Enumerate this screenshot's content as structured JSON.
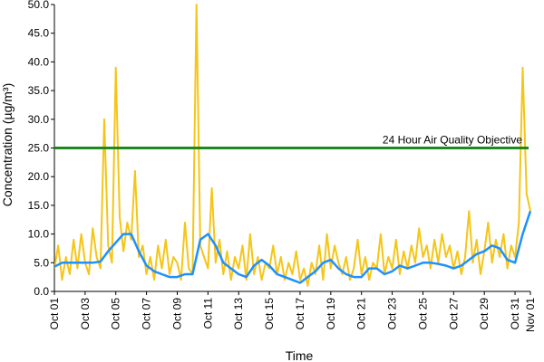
{
  "chart_data": {
    "type": "line",
    "title": "",
    "xlabel": "Time",
    "ylabel": "Concentration (µg/m³)",
    "xlim": [
      "2018-10-01",
      "2018-11-01"
    ],
    "ylim": [
      0,
      50
    ],
    "yticks": [
      0,
      5,
      10,
      15,
      20,
      25,
      30,
      35,
      40,
      45,
      50
    ],
    "ytick_labels": [
      "0.0",
      "5.0",
      "10.0",
      "15.0",
      "20.0",
      "25.0",
      "30.0",
      "35.0",
      "40.0",
      "45.0",
      "50.0"
    ],
    "xticks": [
      "2018-10-01",
      "2018-10-03",
      "2018-10-05",
      "2018-10-07",
      "2018-10-09",
      "2018-10-11",
      "2018-10-13",
      "2018-10-15",
      "2018-10-17",
      "2018-10-19",
      "2018-10-21",
      "2018-10-23",
      "2018-10-25",
      "2018-10-27",
      "2018-10-29",
      "2018-10-31",
      "2018-11-01"
    ],
    "xtick_labels": [
      "Oct 01",
      "Oct 03",
      "Oct 05",
      "Oct 07",
      "Oct 09",
      "Oct 11",
      "Oct 13",
      "Oct 15",
      "Oct 17",
      "Oct 19",
      "Oct 21",
      "Oct 23",
      "Oct 25",
      "Oct 27",
      "Oct 29",
      "Oct 31",
      "Nov 01"
    ],
    "grid": false,
    "legend": "none",
    "series": [
      {
        "role": "hourly",
        "color": "#f5c518",
        "x": [
          "2018-10-01",
          "2018-10-01T06",
          "2018-10-01T12",
          "2018-10-01T18",
          "2018-10-02",
          "2018-10-02T06",
          "2018-10-02T12",
          "2018-10-02T18",
          "2018-10-03",
          "2018-10-03T06",
          "2018-10-03T12",
          "2018-10-03T18",
          "2018-10-04",
          "2018-10-04T06",
          "2018-10-04T12",
          "2018-10-04T18",
          "2018-10-05",
          "2018-10-05T06",
          "2018-10-05T12",
          "2018-10-05T18",
          "2018-10-06",
          "2018-10-06T06",
          "2018-10-06T12",
          "2018-10-06T18",
          "2018-10-07",
          "2018-10-07T06",
          "2018-10-07T12",
          "2018-10-07T18",
          "2018-10-08",
          "2018-10-08T06",
          "2018-10-08T12",
          "2018-10-08T18",
          "2018-10-09",
          "2018-10-09T06",
          "2018-10-09T12",
          "2018-10-09T18",
          "2018-10-10",
          "2018-10-10T06",
          "2018-10-10T12",
          "2018-10-10T18",
          "2018-10-11",
          "2018-10-11T06",
          "2018-10-11T12",
          "2018-10-11T18",
          "2018-10-12",
          "2018-10-12T06",
          "2018-10-12T12",
          "2018-10-12T18",
          "2018-10-13",
          "2018-10-13T06",
          "2018-10-13T12",
          "2018-10-13T18",
          "2018-10-14",
          "2018-10-14T06",
          "2018-10-14T12",
          "2018-10-14T18",
          "2018-10-15",
          "2018-10-15T06",
          "2018-10-15T12",
          "2018-10-15T18",
          "2018-10-16",
          "2018-10-16T06",
          "2018-10-16T12",
          "2018-10-16T18",
          "2018-10-17",
          "2018-10-17T06",
          "2018-10-17T12",
          "2018-10-17T18",
          "2018-10-18",
          "2018-10-18T06",
          "2018-10-18T12",
          "2018-10-18T18",
          "2018-10-19",
          "2018-10-19T06",
          "2018-10-19T12",
          "2018-10-19T18",
          "2018-10-20",
          "2018-10-20T06",
          "2018-10-20T12",
          "2018-10-20T18",
          "2018-10-21",
          "2018-10-21T06",
          "2018-10-21T12",
          "2018-10-21T18",
          "2018-10-22",
          "2018-10-22T06",
          "2018-10-22T12",
          "2018-10-22T18",
          "2018-10-23",
          "2018-10-23T06",
          "2018-10-23T12",
          "2018-10-23T18",
          "2018-10-24",
          "2018-10-24T06",
          "2018-10-24T12",
          "2018-10-24T18",
          "2018-10-25",
          "2018-10-25T06",
          "2018-10-25T12",
          "2018-10-25T18",
          "2018-10-26",
          "2018-10-26T06",
          "2018-10-26T12",
          "2018-10-26T18",
          "2018-10-27",
          "2018-10-27T06",
          "2018-10-27T12",
          "2018-10-27T18",
          "2018-10-28",
          "2018-10-28T06",
          "2018-10-28T12",
          "2018-10-28T18",
          "2018-10-29",
          "2018-10-29T06",
          "2018-10-29T12",
          "2018-10-29T18",
          "2018-10-30",
          "2018-10-30T06",
          "2018-10-30T12",
          "2018-10-30T18",
          "2018-10-31",
          "2018-10-31T06",
          "2018-10-31T12",
          "2018-10-31T18",
          "2018-11-01"
        ],
        "y": [
          4,
          8,
          2,
          6,
          3,
          9,
          4,
          10,
          5,
          3,
          11,
          6,
          4,
          30,
          8,
          5,
          39,
          13,
          7,
          12,
          9,
          21,
          6,
          8,
          3,
          6,
          2,
          8,
          4,
          9,
          3,
          6,
          5,
          2,
          12,
          4,
          3,
          50,
          8,
          6,
          4,
          18,
          5,
          9,
          3,
          7,
          2,
          6,
          4,
          8,
          2,
          10,
          3,
          6,
          2,
          5,
          4,
          8,
          3,
          6,
          2,
          5,
          3,
          7,
          2,
          4,
          1,
          5,
          3,
          8,
          2,
          10,
          4,
          8,
          5,
          3,
          6,
          2,
          4,
          9,
          3,
          6,
          2,
          5,
          4,
          10,
          3,
          6,
          4,
          9,
          3,
          7,
          4,
          8,
          5,
          11,
          6,
          8,
          4,
          9,
          5,
          10,
          6,
          8,
          4,
          7,
          3,
          6,
          14,
          5,
          9,
          3,
          7,
          12,
          5,
          9,
          6,
          10,
          4,
          8,
          6,
          12,
          39,
          17,
          14
        ]
      },
      {
        "role": "running 24-hour average",
        "color": "#1e90ff",
        "x": [
          "2018-10-01",
          "2018-10-01T12",
          "2018-10-02",
          "2018-10-02T12",
          "2018-10-03",
          "2018-10-03T12",
          "2018-10-04",
          "2018-10-04T12",
          "2018-10-05",
          "2018-10-05T12",
          "2018-10-06",
          "2018-10-06T12",
          "2018-10-07",
          "2018-10-07T12",
          "2018-10-08",
          "2018-10-08T12",
          "2018-10-09",
          "2018-10-09T12",
          "2018-10-10",
          "2018-10-10T12",
          "2018-10-11",
          "2018-10-11T12",
          "2018-10-12",
          "2018-10-12T12",
          "2018-10-13",
          "2018-10-13T12",
          "2018-10-14",
          "2018-10-14T12",
          "2018-10-15",
          "2018-10-15T12",
          "2018-10-16",
          "2018-10-16T12",
          "2018-10-17",
          "2018-10-17T12",
          "2018-10-18",
          "2018-10-18T12",
          "2018-10-19",
          "2018-10-19T12",
          "2018-10-20",
          "2018-10-20T12",
          "2018-10-21",
          "2018-10-21T12",
          "2018-10-22",
          "2018-10-22T12",
          "2018-10-23",
          "2018-10-23T12",
          "2018-10-24",
          "2018-10-24T12",
          "2018-10-25",
          "2018-10-25T12",
          "2018-10-26",
          "2018-10-26T12",
          "2018-10-27",
          "2018-10-27T12",
          "2018-10-28",
          "2018-10-28T12",
          "2018-10-29",
          "2018-10-29T12",
          "2018-10-30",
          "2018-10-30T12",
          "2018-10-31",
          "2018-10-31T12",
          "2018-11-01"
        ],
        "y": [
          4.3,
          5.0,
          5.0,
          5.0,
          5.0,
          5.0,
          5.2,
          7.0,
          8.5,
          10.0,
          10.0,
          7.0,
          4.5,
          3.5,
          3.0,
          2.5,
          2.5,
          3.0,
          3.0,
          9.0,
          10.0,
          8.0,
          5.0,
          4.0,
          3.0,
          2.5,
          4.5,
          5.5,
          4.5,
          3.0,
          2.5,
          2.0,
          1.5,
          2.5,
          3.5,
          5.0,
          5.5,
          4.0,
          3.0,
          2.5,
          2.5,
          4.0,
          4.0,
          3.0,
          3.5,
          4.5,
          4.0,
          4.5,
          5.0,
          5.0,
          4.8,
          4.5,
          4.0,
          4.5,
          5.5,
          6.5,
          7.0,
          8.0,
          7.5,
          5.5,
          5.0,
          10.0,
          14.0
        ]
      }
    ],
    "reference_line": {
      "y": 25,
      "label": "24 Hour Air Quality Objective",
      "color": "#1e8a1e"
    }
  }
}
